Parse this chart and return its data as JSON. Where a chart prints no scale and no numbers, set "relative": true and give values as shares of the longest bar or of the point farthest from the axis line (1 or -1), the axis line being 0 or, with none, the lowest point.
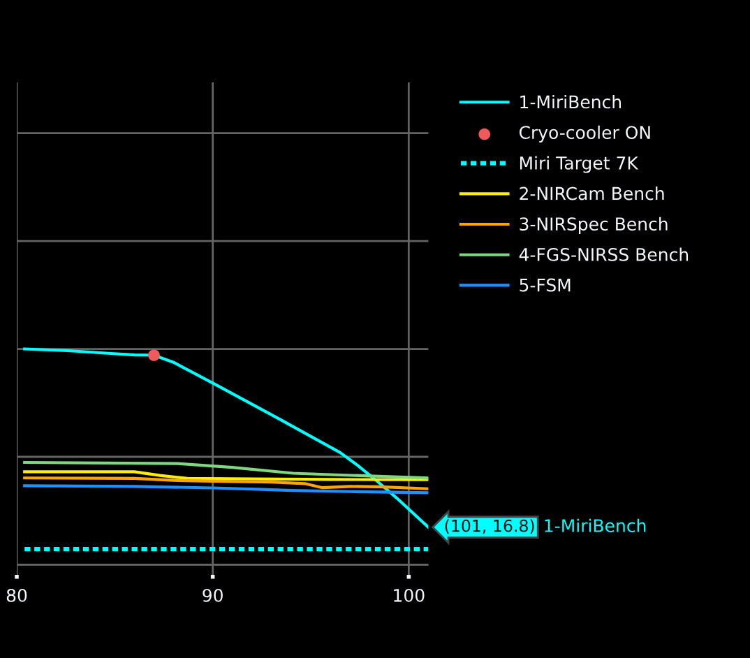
{
  "chart_data": {
    "type": "line",
    "relative": true,
    "xlim": [
      80,
      101
    ],
    "xticks": [
      80,
      90,
      100
    ],
    "tick_labels": "x",
    "grid": true,
    "legend": "top right",
    "line_style": "solid",
    "series": [
      {
        "name": "1-MiriBench",
        "color": "#00ffff",
        "x": [
          80.4,
          82.6,
          84.8,
          86.0,
          87.0,
          88.0,
          90.0,
          93.4,
          96.5,
          97.4,
          98.3,
          99.4,
          101
        ],
        "values": [
          1,
          0.992,
          0.979,
          0.972,
          0.971,
          0.938,
          0.842,
          0.675,
          0.52,
          0.46,
          0.394,
          0.308,
          0.174
        ]
      },
      {
        "name": "Cryo-cooler ON",
        "type": "scatter",
        "marker": "circle",
        "color": "#ef5a5a",
        "x": [
          87.0
        ],
        "values": [
          0.971
        ]
      },
      {
        "name": "Miri Target 7K",
        "color": "#00ffff",
        "line_style": "dotted",
        "x": [
          80.4,
          101
        ],
        "values": [
          0.072,
          0.072
        ]
      },
      {
        "name": "2-NIRCam Bench",
        "color": "#ffee00",
        "x": [
          80.4,
          86.0,
          87.3,
          88.7,
          92.0,
          96.0,
          101
        ],
        "values": [
          0.431,
          0.431,
          0.414,
          0.4,
          0.398,
          0.395,
          0.394
        ]
      },
      {
        "name": "3-NIRSpec Bench",
        "color": "#ffa500",
        "x": [
          80.4,
          86.0,
          88.0,
          90.0,
          93.0,
          94.7,
          95.6,
          97.0,
          98.5,
          101
        ],
        "values": [
          0.402,
          0.4,
          0.391,
          0.387,
          0.383,
          0.376,
          0.357,
          0.363,
          0.361,
          0.352
        ]
      },
      {
        "name": "4-FGS-NIRSS Bench",
        "color": "#7fd87f",
        "x": [
          80.4,
          88.2,
          91.0,
          94.1,
          96.5,
          101
        ],
        "values": [
          0.474,
          0.469,
          0.451,
          0.424,
          0.416,
          0.402
        ]
      },
      {
        "name": "5-FSM",
        "color": "#1e90ff",
        "x": [
          80.4,
          86.0,
          90.0,
          92.5,
          94.0,
          97.0,
          101
        ],
        "values": [
          0.366,
          0.363,
          0.356,
          0.349,
          0.344,
          0.339,
          0.334
        ]
      }
    ],
    "annotations": [
      {
        "text": "(101, 16.8)",
        "x": 101,
        "y": 0.174
      }
    ]
  }
}
